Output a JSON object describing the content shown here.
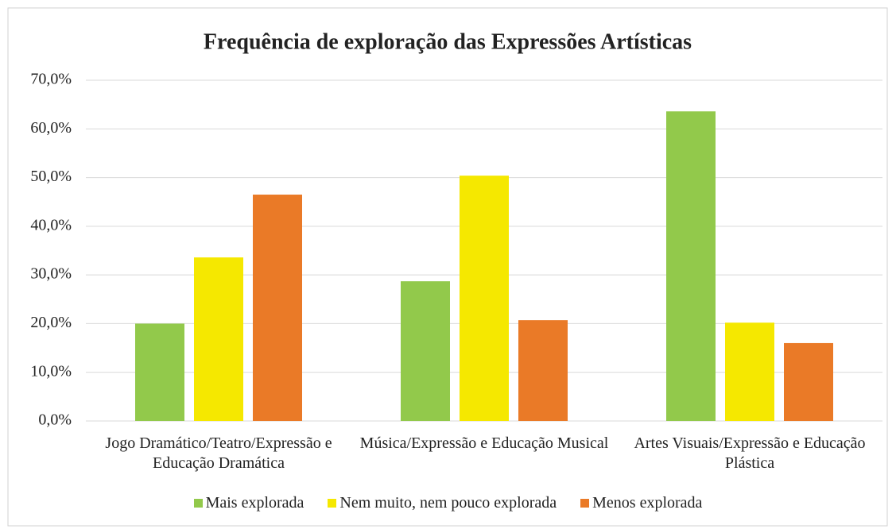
{
  "chart_data": {
    "type": "bar",
    "title": "Frequência de exploração das Expressões Artísticas",
    "categories": [
      "Jogo Dramático/Teatro/Expressão e Educação Dramática",
      "Música/Expressão e Educação Musical",
      "Artes Visuais/Expressão e Educação Plástica"
    ],
    "series": [
      {
        "name": "Mais explorada",
        "color": "#92c94b",
        "values": [
          20.0,
          28.7,
          63.6
        ]
      },
      {
        "name": "Nem muito, nem pouco explorada",
        "color": "#f5e800",
        "values": [
          33.6,
          50.4,
          20.2
        ]
      },
      {
        "name": "Menos explorada",
        "color": "#ea7a27",
        "values": [
          46.5,
          20.7,
          16.0
        ]
      }
    ],
    "ylim": [
      0,
      70
    ],
    "yticks": [
      {
        "value": 0,
        "label": "0,0%"
      },
      {
        "value": 10,
        "label": "10,0%"
      },
      {
        "value": 20,
        "label": "20,0%"
      },
      {
        "value": 30,
        "label": "30,0%"
      },
      {
        "value": 40,
        "label": "40,0%"
      },
      {
        "value": 50,
        "label": "50,0%"
      },
      {
        "value": 60,
        "label": "60,0%"
      },
      {
        "value": 70,
        "label": "70,0%"
      }
    ],
    "grid": true,
    "legend": "bottom"
  }
}
